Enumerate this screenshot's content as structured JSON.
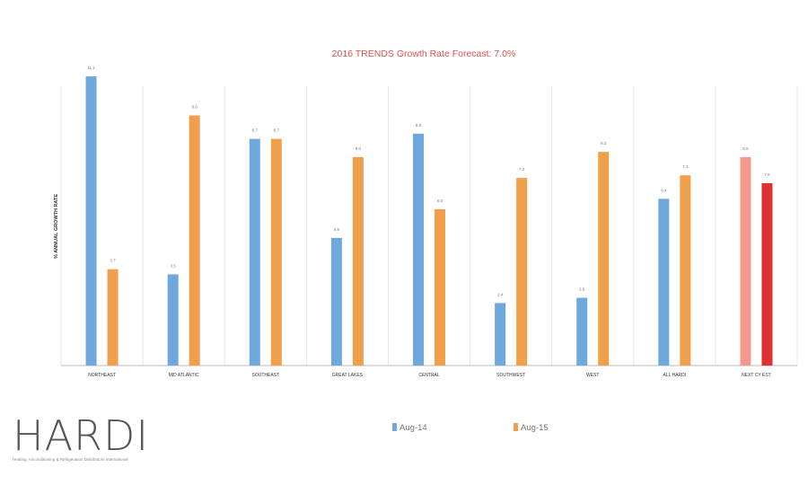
{
  "chart_data": {
    "type": "bar",
    "title": "2016 TRENDS Growth Rate Forecast: 7.0%",
    "ylabel": "% ANNUAL GROWTH RATE",
    "xlabel": "",
    "ylim": [
      0,
      12
    ],
    "grid": "vertical separators between categories",
    "legend_position": "bottom-center",
    "categories": [
      "NORTHEAST",
      "MID ATLANTIC",
      "SOUTHEAST",
      "GREAT LAKES",
      "CENTRAL",
      "SOUTHWEST",
      "WEST",
      "ALL HARDI",
      "NEXT CY EST"
    ],
    "series": [
      {
        "name": "Aug-14",
        "color": "#6fa8dc",
        "values": [
          11.1,
          3.5,
          8.7,
          4.9,
          8.9,
          2.4,
          2.6,
          6.4,
          8.0
        ],
        "labels": [
          "11.1",
          "3.5",
          "8.7",
          "4.9",
          "8.9",
          "2.4",
          "2.6",
          "6.4",
          "8.0"
        ],
        "point_colors": [
          null,
          null,
          null,
          null,
          null,
          null,
          null,
          null,
          "#f4978e"
        ]
      },
      {
        "name": "Aug-15",
        "color": "#f0a04b",
        "values": [
          3.7,
          9.6,
          8.7,
          8.0,
          6.0,
          7.2,
          8.2,
          7.3,
          7.0
        ],
        "labels": [
          "3.7",
          "9.6",
          "8.7",
          "8.0",
          "6.0",
          "7.2",
          "8.2",
          "7.3",
          "7.0"
        ],
        "point_colors": [
          null,
          null,
          null,
          null,
          null,
          null,
          null,
          null,
          "#e03131"
        ]
      }
    ]
  },
  "logo": {
    "word": "HARDI",
    "tagline": "Heating, Airconditioning & Refrigeration Distributors International"
  }
}
